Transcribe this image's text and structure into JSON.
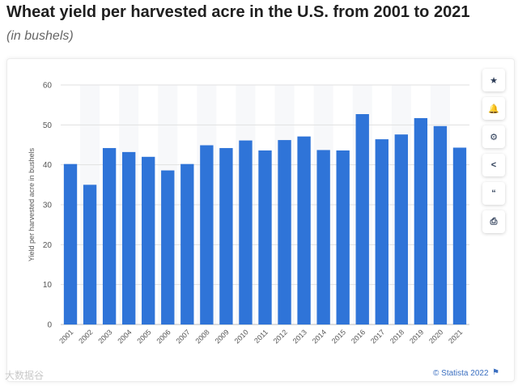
{
  "header": {
    "title": "Wheat yield per harvested acre in the U.S. from 2001 to 2021",
    "subtitle": "(in bushels)"
  },
  "toolbar": {
    "star_icon": "★",
    "bell_icon": "🔔",
    "gear_icon": "⚙",
    "share_icon": "<",
    "quote_icon": "“",
    "print_icon": "⎙"
  },
  "footer": {
    "credit": "© Statista 2022",
    "flag_icon": "⚑",
    "watermark": "大数据谷"
  },
  "colors": {
    "bar": "#2f74d8",
    "grid": "#e1e1e1",
    "stripe": "#f7f8fa"
  },
  "chart_data": {
    "type": "bar",
    "title": "Wheat yield per harvested acre in the U.S. from 2001 to 2021",
    "subtitle": "(in bushels)",
    "xlabel": "",
    "ylabel": "Yield per harvested acre in bushels",
    "ylim": [
      0,
      60
    ],
    "yticks": [
      0,
      10,
      20,
      30,
      40,
      50,
      60
    ],
    "grid": true,
    "categories": [
      "2001",
      "2002",
      "2003",
      "2004",
      "2005",
      "2006",
      "2007",
      "2008",
      "2009",
      "2010",
      "2011",
      "2012",
      "2013",
      "2014",
      "2015",
      "2016",
      "2017",
      "2018",
      "2019",
      "2020",
      "2021"
    ],
    "values": [
      40.2,
      35.0,
      44.2,
      43.2,
      42.0,
      38.6,
      40.2,
      44.9,
      44.2,
      46.1,
      43.6,
      46.2,
      47.1,
      43.7,
      43.6,
      52.7,
      46.4,
      47.6,
      51.7,
      49.7,
      44.3
    ]
  }
}
